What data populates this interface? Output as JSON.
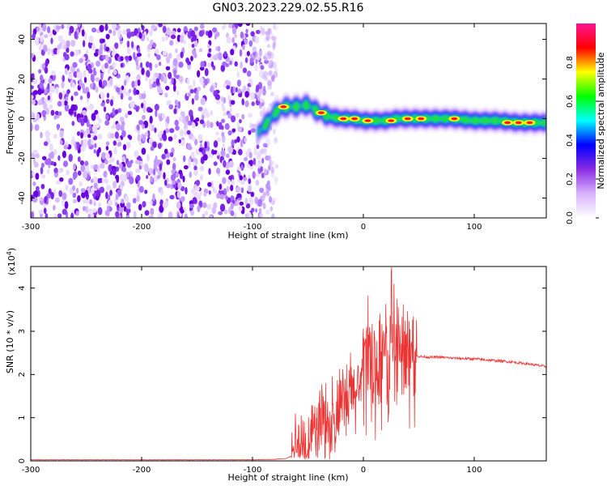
{
  "title": "GN03.2023.229.02.55.R16",
  "chart_data": [
    {
      "type": "heatmap",
      "xlabel": "Height of straight line (km)",
      "ylabel": "Frequency (Hz)",
      "xlim": [
        -300,
        165
      ],
      "ylim": [
        -50,
        48
      ],
      "xticks": [
        "-300",
        "-200",
        "-100",
        "0",
        "100"
      ],
      "xtick_values": [
        -300,
        -200,
        -100,
        0,
        100
      ],
      "yticks": [
        "-40",
        "-20",
        "0",
        "20",
        "40"
      ],
      "ytick_values": [
        -40,
        -20,
        0,
        20,
        40
      ],
      "colorbar": {
        "label": "Normalized spectral amplitude",
        "range": [
          0,
          1
        ],
        "ticks": [
          "0.0",
          "0.2",
          "0.4",
          "0.6",
          "0.8"
        ],
        "tick_values": [
          0,
          0.2,
          0.4,
          0.6,
          0.8
        ],
        "colors": [
          "#ffffff",
          "#d9b3ff",
          "#8a2be2",
          "#0000ff",
          "#00ffff",
          "#00ff00",
          "#ffff00",
          "#ff0000",
          "#ff1493"
        ]
      },
      "noise_region_x": [
        -300,
        -78
      ],
      "ridge": [
        {
          "x": -95,
          "y": -7
        },
        {
          "x": -88,
          "y": -3
        },
        {
          "x": -80,
          "y": 3
        },
        {
          "x": -70,
          "y": 6
        },
        {
          "x": -60,
          "y": 6
        },
        {
          "x": -50,
          "y": 7
        },
        {
          "x": -40,
          "y": 3
        },
        {
          "x": -30,
          "y": 1
        },
        {
          "x": -20,
          "y": 0
        },
        {
          "x": -10,
          "y": 0
        },
        {
          "x": 0,
          "y": -1
        },
        {
          "x": 10,
          "y": -1
        },
        {
          "x": 20,
          "y": -1
        },
        {
          "x": 30,
          "y": 0
        },
        {
          "x": 40,
          "y": 0
        },
        {
          "x": 60,
          "y": 0
        },
        {
          "x": 80,
          "y": 0
        },
        {
          "x": 100,
          "y": -1
        },
        {
          "x": 120,
          "y": -1
        },
        {
          "x": 140,
          "y": -2
        },
        {
          "x": 165,
          "y": -2
        }
      ],
      "hotspots": [
        {
          "x": -72,
          "y": 6
        },
        {
          "x": -38,
          "y": 3
        },
        {
          "x": -18,
          "y": 0
        },
        {
          "x": -8,
          "y": 0
        },
        {
          "x": 4,
          "y": -1
        },
        {
          "x": 25,
          "y": -1
        },
        {
          "x": 40,
          "y": 0
        },
        {
          "x": 52,
          "y": 0
        },
        {
          "x": 82,
          "y": 0
        },
        {
          "x": 130,
          "y": -2
        },
        {
          "x": 140,
          "y": -2
        },
        {
          "x": 150,
          "y": -2
        }
      ]
    },
    {
      "type": "line",
      "xlabel": "Height of straight line (km)",
      "ylabel": "SNR (10 * v/v)",
      "y_multiplier_label": "(x10",
      "y_multiplier_exp": "4",
      "y_multiplier_close": ")",
      "xlim": [
        -300,
        165
      ],
      "ylim": [
        0,
        4.5
      ],
      "xticks": [
        "-300",
        "-200",
        "-100",
        "0",
        "100"
      ],
      "xtick_values": [
        -300,
        -200,
        -100,
        0,
        100
      ],
      "yticks": [
        "0",
        "1",
        "2",
        "3",
        "4"
      ],
      "ytick_values": [
        0,
        1,
        2,
        3,
        4
      ],
      "color": "#ee3333",
      "series": [
        {
          "values": [
            [
              -300,
              0.02
            ],
            [
              -200,
              0.02
            ],
            [
              -100,
              0.02
            ],
            [
              -80,
              0.03
            ],
            [
              -70,
              0.05
            ],
            [
              -65,
              0.1
            ],
            [
              -60,
              0.2
            ],
            [
              -55,
              0.3
            ],
            [
              -50,
              0.4
            ],
            [
              -45,
              0.7
            ],
            [
              -40,
              1.0
            ],
            [
              -35,
              1.0
            ],
            [
              -30,
              0.9
            ],
            [
              -25,
              1.1
            ],
            [
              -20,
              1.2
            ],
            [
              -15,
              1.4
            ],
            [
              -10,
              1.6
            ],
            [
              -5,
              1.8
            ],
            [
              0,
              2.0
            ],
            [
              5,
              2.2
            ],
            [
              10,
              2.3
            ],
            [
              15,
              2.4
            ],
            [
              20,
              2.5
            ],
            [
              25,
              2.6
            ],
            [
              30,
              2.6
            ],
            [
              35,
              2.5
            ],
            [
              40,
              2.5
            ],
            [
              45,
              2.45
            ],
            [
              50,
              2.42
            ],
            [
              60,
              2.4
            ],
            [
              70,
              2.4
            ],
            [
              80,
              2.38
            ],
            [
              90,
              2.37
            ],
            [
              100,
              2.36
            ],
            [
              110,
              2.34
            ],
            [
              120,
              2.32
            ],
            [
              130,
              2.3
            ],
            [
              140,
              2.27
            ],
            [
              150,
              2.24
            ],
            [
              160,
              2.2
            ],
            [
              165,
              2.18
            ]
          ]
        }
      ]
    }
  ]
}
